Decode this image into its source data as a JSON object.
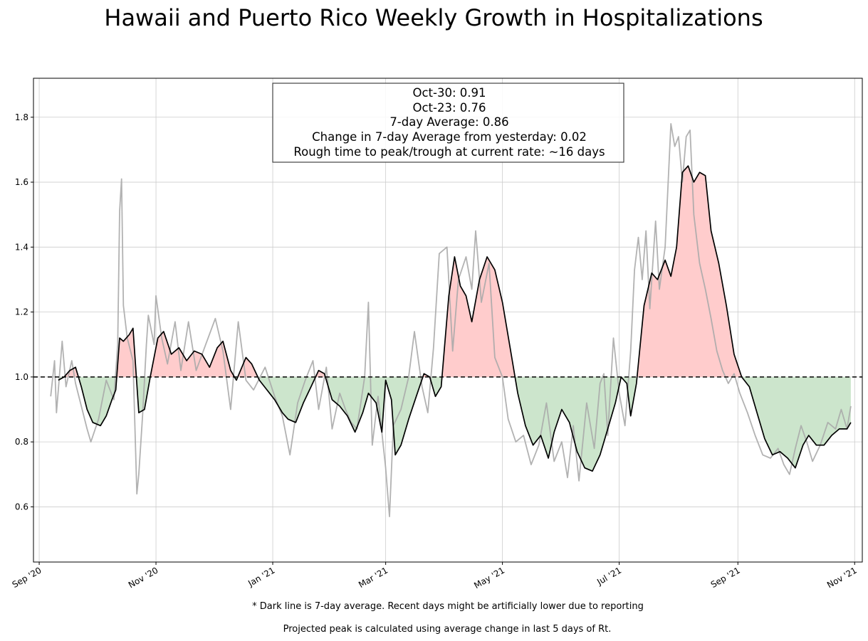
{
  "chart_data": {
    "type": "line",
    "title": "Hawaii and Puerto Rico Weekly Growth in Hospitalizations",
    "xlabel": "",
    "ylabel": "",
    "x_axis": {
      "type": "date",
      "range": [
        "2020-08-29",
        "2021-11-05"
      ],
      "ticks": [
        {
          "date": "2020-09-01",
          "label": "Sep '20"
        },
        {
          "date": "2020-11-01",
          "label": "Nov '20"
        },
        {
          "date": "2021-01-01",
          "label": "Jan '21"
        },
        {
          "date": "2021-03-01",
          "label": "Mar '21"
        },
        {
          "date": "2021-05-01",
          "label": "May '21"
        },
        {
          "date": "2021-07-01",
          "label": "Jul '21"
        },
        {
          "date": "2021-09-01",
          "label": "Sep '21"
        },
        {
          "date": "2021-11-01",
          "label": "Nov '21"
        }
      ]
    },
    "y_axis": {
      "range": [
        0.43,
        1.92
      ],
      "ticks": [
        0.6,
        0.8,
        1.0,
        1.2,
        1.4,
        1.6,
        1.8
      ],
      "tick_labels": [
        "0.6",
        "0.8",
        "1.0",
        "1.2",
        "1.4",
        "1.6",
        "1.8"
      ]
    },
    "grid": true,
    "reference_line": {
      "y": 1.0,
      "style": "dashed",
      "color": "#000000"
    },
    "fill": {
      "above_color": "#ffcccc",
      "below_color": "#cce5cc"
    },
    "series": [
      {
        "role": "daily",
        "color": "#aaaaaa",
        "points": [
          [
            "2020-09-07",
            0.94
          ],
          [
            "2020-09-09",
            1.05
          ],
          [
            "2020-09-10",
            0.89
          ],
          [
            "2020-09-11",
            0.96
          ],
          [
            "2020-09-13",
            1.11
          ],
          [
            "2020-09-15",
            0.97
          ],
          [
            "2020-09-18",
            1.05
          ],
          [
            "2020-09-20",
            0.98
          ],
          [
            "2020-09-23",
            0.91
          ],
          [
            "2020-09-26",
            0.84
          ],
          [
            "2020-09-28",
            0.8
          ],
          [
            "2020-10-02",
            0.87
          ],
          [
            "2020-10-06",
            0.99
          ],
          [
            "2020-10-10",
            0.93
          ],
          [
            "2020-10-12",
            1.1
          ],
          [
            "2020-10-13",
            1.51
          ],
          [
            "2020-10-14",
            1.61
          ],
          [
            "2020-10-15",
            1.22
          ],
          [
            "2020-10-17",
            1.12
          ],
          [
            "2020-10-20",
            1.05
          ],
          [
            "2020-10-22",
            0.64
          ],
          [
            "2020-10-23",
            0.7
          ],
          [
            "2020-10-25",
            0.88
          ],
          [
            "2020-10-27",
            1.1
          ],
          [
            "2020-10-28",
            1.19
          ],
          [
            "2020-10-31",
            1.1
          ],
          [
            "2020-11-01",
            1.25
          ],
          [
            "2020-11-04",
            1.12
          ],
          [
            "2020-11-07",
            1.04
          ],
          [
            "2020-11-11",
            1.17
          ],
          [
            "2020-11-14",
            1.02
          ],
          [
            "2020-11-18",
            1.17
          ],
          [
            "2020-11-22",
            1.02
          ],
          [
            "2020-11-27",
            1.1
          ],
          [
            "2020-12-02",
            1.18
          ],
          [
            "2020-12-06",
            1.08
          ],
          [
            "2020-12-10",
            0.9
          ],
          [
            "2020-12-14",
            1.17
          ],
          [
            "2020-12-18",
            0.99
          ],
          [
            "2020-12-22",
            0.96
          ],
          [
            "2020-12-28",
            1.03
          ],
          [
            "2021-01-02",
            0.94
          ],
          [
            "2021-01-06",
            0.88
          ],
          [
            "2021-01-10",
            0.76
          ],
          [
            "2021-01-14",
            0.92
          ],
          [
            "2021-01-18",
            0.99
          ],
          [
            "2021-01-22",
            1.05
          ],
          [
            "2021-01-25",
            0.9
          ],
          [
            "2021-01-29",
            1.03
          ],
          [
            "2021-02-01",
            0.84
          ],
          [
            "2021-02-05",
            0.95
          ],
          [
            "2021-02-08",
            0.9
          ],
          [
            "2021-02-11",
            0.86
          ],
          [
            "2021-02-14",
            0.84
          ],
          [
            "2021-02-18",
            1.0
          ],
          [
            "2021-02-20",
            1.23
          ],
          [
            "2021-02-22",
            0.79
          ],
          [
            "2021-02-25",
            0.94
          ],
          [
            "2021-03-01",
            0.72
          ],
          [
            "2021-03-03",
            0.57
          ],
          [
            "2021-03-05",
            0.85
          ],
          [
            "2021-03-09",
            0.9
          ],
          [
            "2021-03-13",
            1.0
          ],
          [
            "2021-03-16",
            1.14
          ],
          [
            "2021-03-20",
            0.97
          ],
          [
            "2021-03-23",
            0.89
          ],
          [
            "2021-03-26",
            1.09
          ],
          [
            "2021-03-29",
            1.38
          ],
          [
            "2021-04-02",
            1.4
          ],
          [
            "2021-04-05",
            1.08
          ],
          [
            "2021-04-08",
            1.3
          ],
          [
            "2021-04-12",
            1.37
          ],
          [
            "2021-04-15",
            1.27
          ],
          [
            "2021-04-17",
            1.45
          ],
          [
            "2021-04-20",
            1.23
          ],
          [
            "2021-04-24",
            1.35
          ],
          [
            "2021-04-27",
            1.06
          ],
          [
            "2021-05-01",
            1.0
          ],
          [
            "2021-05-04",
            0.87
          ],
          [
            "2021-05-08",
            0.8
          ],
          [
            "2021-05-12",
            0.82
          ],
          [
            "2021-05-16",
            0.73
          ],
          [
            "2021-05-20",
            0.79
          ],
          [
            "2021-05-24",
            0.92
          ],
          [
            "2021-05-28",
            0.74
          ],
          [
            "2021-06-01",
            0.8
          ],
          [
            "2021-06-04",
            0.69
          ],
          [
            "2021-06-07",
            0.85
          ],
          [
            "2021-06-10",
            0.68
          ],
          [
            "2021-06-14",
            0.92
          ],
          [
            "2021-06-18",
            0.78
          ],
          [
            "2021-06-21",
            0.98
          ],
          [
            "2021-06-23",
            1.01
          ],
          [
            "2021-06-25",
            0.82
          ],
          [
            "2021-06-28",
            1.12
          ],
          [
            "2021-07-01",
            0.95
          ],
          [
            "2021-07-04",
            0.85
          ],
          [
            "2021-07-07",
            1.08
          ],
          [
            "2021-07-09",
            1.33
          ],
          [
            "2021-07-11",
            1.43
          ],
          [
            "2021-07-13",
            1.3
          ],
          [
            "2021-07-15",
            1.45
          ],
          [
            "2021-07-17",
            1.21
          ],
          [
            "2021-07-20",
            1.48
          ],
          [
            "2021-07-22",
            1.27
          ],
          [
            "2021-07-25",
            1.4
          ],
          [
            "2021-07-28",
            1.78
          ],
          [
            "2021-07-30",
            1.71
          ],
          [
            "2021-08-01",
            1.74
          ],
          [
            "2021-08-03",
            1.6
          ],
          [
            "2021-08-05",
            1.74
          ],
          [
            "2021-08-07",
            1.76
          ],
          [
            "2021-08-09",
            1.5
          ],
          [
            "2021-08-12",
            1.35
          ],
          [
            "2021-08-15",
            1.27
          ],
          [
            "2021-08-18",
            1.18
          ],
          [
            "2021-08-21",
            1.08
          ],
          [
            "2021-08-24",
            1.02
          ],
          [
            "2021-08-27",
            0.98
          ],
          [
            "2021-08-30",
            1.01
          ],
          [
            "2021-09-02",
            0.95
          ],
          [
            "2021-09-06",
            0.89
          ],
          [
            "2021-09-10",
            0.82
          ],
          [
            "2021-09-14",
            0.76
          ],
          [
            "2021-09-18",
            0.75
          ],
          [
            "2021-09-22",
            0.78
          ],
          [
            "2021-09-25",
            0.73
          ],
          [
            "2021-09-28",
            0.7
          ],
          [
            "2021-10-01",
            0.78
          ],
          [
            "2021-10-04",
            0.85
          ],
          [
            "2021-10-07",
            0.8
          ],
          [
            "2021-10-10",
            0.74
          ],
          [
            "2021-10-14",
            0.79
          ],
          [
            "2021-10-18",
            0.86
          ],
          [
            "2021-10-22",
            0.84
          ],
          [
            "2021-10-25",
            0.9
          ],
          [
            "2021-10-28",
            0.84
          ],
          [
            "2021-10-30",
            0.91
          ]
        ]
      },
      {
        "role": "7-day average",
        "color": "#000000",
        "points": [
          [
            "2020-09-11",
            0.99
          ],
          [
            "2020-09-14",
            1.0
          ],
          [
            "2020-09-17",
            1.02
          ],
          [
            "2020-09-20",
            1.03
          ],
          [
            "2020-09-23",
            0.97
          ],
          [
            "2020-09-26",
            0.9
          ],
          [
            "2020-09-29",
            0.86
          ],
          [
            "2020-10-03",
            0.85
          ],
          [
            "2020-10-06",
            0.88
          ],
          [
            "2020-10-09",
            0.93
          ],
          [
            "2020-10-11",
            0.96
          ],
          [
            "2020-10-13",
            1.12
          ],
          [
            "2020-10-15",
            1.11
          ],
          [
            "2020-10-18",
            1.13
          ],
          [
            "2020-10-20",
            1.15
          ],
          [
            "2020-10-23",
            0.89
          ],
          [
            "2020-10-26",
            0.9
          ],
          [
            "2020-10-29",
            1.0
          ],
          [
            "2020-11-02",
            1.12
          ],
          [
            "2020-11-05",
            1.14
          ],
          [
            "2020-11-09",
            1.07
          ],
          [
            "2020-11-13",
            1.09
          ],
          [
            "2020-11-17",
            1.05
          ],
          [
            "2020-11-21",
            1.08
          ],
          [
            "2020-11-25",
            1.07
          ],
          [
            "2020-11-29",
            1.03
          ],
          [
            "2020-12-03",
            1.09
          ],
          [
            "2020-12-06",
            1.11
          ],
          [
            "2020-12-10",
            1.02
          ],
          [
            "2020-12-13",
            0.99
          ],
          [
            "2020-12-18",
            1.06
          ],
          [
            "2020-12-21",
            1.04
          ],
          [
            "2020-12-25",
            0.99
          ],
          [
            "2020-12-29",
            0.96
          ],
          [
            "2021-01-02",
            0.93
          ],
          [
            "2021-01-06",
            0.89
          ],
          [
            "2021-01-09",
            0.87
          ],
          [
            "2021-01-13",
            0.86
          ],
          [
            "2021-01-17",
            0.92
          ],
          [
            "2021-01-21",
            0.97
          ],
          [
            "2021-01-25",
            1.02
          ],
          [
            "2021-01-28",
            1.01
          ],
          [
            "2021-02-01",
            0.93
          ],
          [
            "2021-02-05",
            0.91
          ],
          [
            "2021-02-09",
            0.88
          ],
          [
            "2021-02-13",
            0.83
          ],
          [
            "2021-02-17",
            0.89
          ],
          [
            "2021-02-20",
            0.95
          ],
          [
            "2021-02-24",
            0.92
          ],
          [
            "2021-02-27",
            0.83
          ],
          [
            "2021-03-01",
            0.99
          ],
          [
            "2021-03-04",
            0.93
          ],
          [
            "2021-03-06",
            0.76
          ],
          [
            "2021-03-09",
            0.79
          ],
          [
            "2021-03-13",
            0.87
          ],
          [
            "2021-03-17",
            0.94
          ],
          [
            "2021-03-21",
            1.01
          ],
          [
            "2021-03-24",
            1.0
          ],
          [
            "2021-03-27",
            0.94
          ],
          [
            "2021-03-30",
            0.97
          ],
          [
            "2021-04-03",
            1.25
          ],
          [
            "2021-04-06",
            1.37
          ],
          [
            "2021-04-09",
            1.28
          ],
          [
            "2021-04-12",
            1.25
          ],
          [
            "2021-04-15",
            1.17
          ],
          [
            "2021-04-19",
            1.3
          ],
          [
            "2021-04-23",
            1.37
          ],
          [
            "2021-04-27",
            1.33
          ],
          [
            "2021-05-01",
            1.23
          ],
          [
            "2021-05-05",
            1.09
          ],
          [
            "2021-05-09",
            0.95
          ],
          [
            "2021-05-13",
            0.85
          ],
          [
            "2021-05-17",
            0.79
          ],
          [
            "2021-05-21",
            0.82
          ],
          [
            "2021-05-25",
            0.75
          ],
          [
            "2021-05-28",
            0.83
          ],
          [
            "2021-06-01",
            0.9
          ],
          [
            "2021-06-05",
            0.86
          ],
          [
            "2021-06-09",
            0.77
          ],
          [
            "2021-06-13",
            0.72
          ],
          [
            "2021-06-17",
            0.71
          ],
          [
            "2021-06-21",
            0.76
          ],
          [
            "2021-06-25",
            0.84
          ],
          [
            "2021-06-29",
            0.92
          ],
          [
            "2021-07-02",
            1.0
          ],
          [
            "2021-07-05",
            0.98
          ],
          [
            "2021-07-07",
            0.88
          ],
          [
            "2021-07-10",
            0.98
          ],
          [
            "2021-07-14",
            1.22
          ],
          [
            "2021-07-18",
            1.32
          ],
          [
            "2021-07-21",
            1.3
          ],
          [
            "2021-07-25",
            1.36
          ],
          [
            "2021-07-28",
            1.31
          ],
          [
            "2021-07-31",
            1.4
          ],
          [
            "2021-08-03",
            1.63
          ],
          [
            "2021-08-06",
            1.65
          ],
          [
            "2021-08-09",
            1.6
          ],
          [
            "2021-08-12",
            1.63
          ],
          [
            "2021-08-15",
            1.62
          ],
          [
            "2021-08-18",
            1.45
          ],
          [
            "2021-08-22",
            1.35
          ],
          [
            "2021-08-26",
            1.22
          ],
          [
            "2021-08-30",
            1.07
          ],
          [
            "2021-09-03",
            1.0
          ],
          [
            "2021-09-07",
            0.97
          ],
          [
            "2021-09-11",
            0.89
          ],
          [
            "2021-09-15",
            0.81
          ],
          [
            "2021-09-19",
            0.76
          ],
          [
            "2021-09-23",
            0.77
          ],
          [
            "2021-09-27",
            0.75
          ],
          [
            "2021-10-01",
            0.72
          ],
          [
            "2021-10-05",
            0.79
          ],
          [
            "2021-10-08",
            0.82
          ],
          [
            "2021-10-12",
            0.79
          ],
          [
            "2021-10-16",
            0.79
          ],
          [
            "2021-10-20",
            0.82
          ],
          [
            "2021-10-24",
            0.84
          ],
          [
            "2021-10-28",
            0.84
          ],
          [
            "2021-10-30",
            0.86
          ]
        ]
      }
    ],
    "info_box": {
      "lines": [
        "Oct-30: 0.91",
        "Oct-23: 0.76",
        "7-day Average: 0.86",
        "Change in 7-day Average from yesterday: 0.02",
        "Rough time to peak/trough at current rate: ~16 days"
      ]
    },
    "footnotes": [
      "* Dark line is 7-day average. Recent days might be artificially lower due to reporting",
      "Projected peak is calculated using average change in last 5 days of Rt."
    ]
  }
}
